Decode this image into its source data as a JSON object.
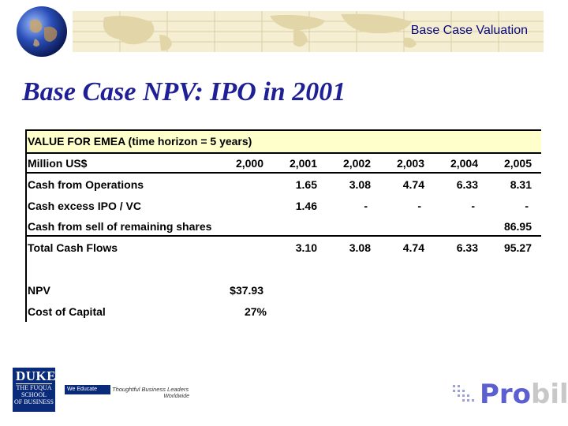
{
  "header": {
    "banner_title": "Base Case Valuation"
  },
  "slide": {
    "title": "Base Case NPV: IPO in 2001"
  },
  "table": {
    "heading": "VALUE FOR EMEA (time horizon = 5 years)",
    "col_header_label": "Million US$",
    "years": [
      "2,000",
      "2,001",
      "2,002",
      "2,003",
      "2,004",
      "2,005"
    ],
    "rows": [
      {
        "label": "Cash from Operations",
        "values": [
          "",
          "1.65",
          "3.08",
          "4.74",
          "6.33",
          "8.31"
        ]
      },
      {
        "label": "Cash excess IPO / VC",
        "values": [
          "",
          "1.46",
          "-",
          "-",
          "-",
          "-"
        ]
      },
      {
        "label": "Cash from sell of remaining shares",
        "values": [
          "",
          "",
          "",
          "",
          "",
          "86.95"
        ]
      }
    ],
    "total": {
      "label": "Total Cash Flows",
      "values": [
        "",
        "3.10",
        "3.08",
        "4.74",
        "6.33",
        "95.27"
      ]
    },
    "npv": {
      "label": "NPV",
      "value": "$37.93"
    },
    "cost_of_capital": {
      "label": "Cost of Capital",
      "value": "27%"
    }
  },
  "footer": {
    "duke_logo": {
      "top": "DUKE",
      "lines": [
        "THE FUQUA",
        "SCHOOL",
        "OF BUSINESS"
      ]
    },
    "tagline": {
      "box": "We Educate",
      "text": "Thoughtful Business Leaders",
      "sub": "Worldwide"
    },
    "probil_logo": {
      "part1": "Pro",
      "part2": "bil"
    }
  },
  "colors": {
    "title": "#1f1f96",
    "banner": "#f5eed2",
    "table_header": "#ffffcc",
    "probil": "#5b5fcf"
  }
}
